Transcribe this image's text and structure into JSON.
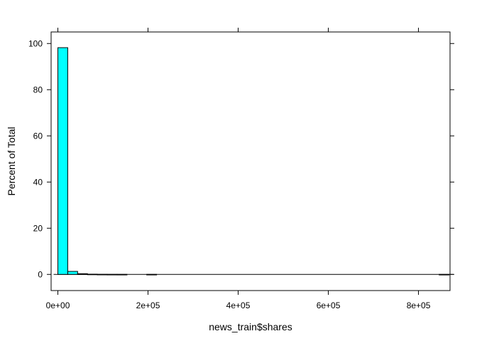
{
  "chart_data": {
    "type": "bar",
    "title": "",
    "xlabel": "news_train$shares",
    "ylabel": "Percent of Total",
    "xlim": [
      -15000,
      870000
    ],
    "ylim": [
      -7,
      105
    ],
    "bin_width": 21900,
    "x_ticks": [
      {
        "value": 0,
        "label": "0e+00"
      },
      {
        "value": 200000,
        "label": "2e+05"
      },
      {
        "value": 400000,
        "label": "4e+05"
      },
      {
        "value": 600000,
        "label": "6e+05"
      },
      {
        "value": 800000,
        "label": "8e+05"
      }
    ],
    "y_ticks": [
      {
        "value": 0,
        "label": "0"
      },
      {
        "value": 20,
        "label": "20"
      },
      {
        "value": 40,
        "label": "40"
      },
      {
        "value": 60,
        "label": "60"
      },
      {
        "value": 80,
        "label": "80"
      },
      {
        "value": 100,
        "label": "100"
      }
    ],
    "bars": [
      {
        "x0": 1,
        "x1": 21900,
        "value": 98.2
      },
      {
        "x0": 21900,
        "x1": 43800,
        "value": 1.3
      },
      {
        "x0": 43800,
        "x1": 65700,
        "value": 0.3
      },
      {
        "x0": 65700,
        "x1": 87600,
        "value": 0.1
      },
      {
        "x0": 87600,
        "x1": 109500,
        "value": 0.05
      },
      {
        "x0": 109500,
        "x1": 131400,
        "value": 0.03
      },
      {
        "x0": 131400,
        "x1": 153300,
        "value": 0.02
      },
      {
        "x0": 197100,
        "x1": 219000,
        "value": 0.02
      },
      {
        "x0": 846000,
        "x1": 867900,
        "value": 0.01
      }
    ],
    "bar_fill": "#00ffff",
    "bar_stroke": "#000000",
    "grid": false
  }
}
